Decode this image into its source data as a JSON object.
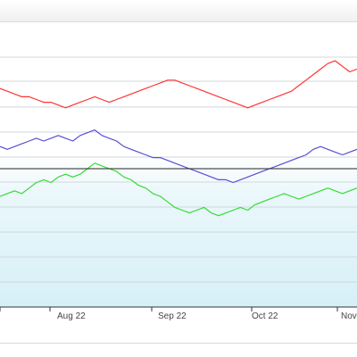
{
  "chart_data": {
    "type": "line",
    "title": "",
    "xlabel": "",
    "ylabel": "",
    "x_tick_labels": [
      "Aug 22",
      "Sep 22",
      "Oct 22",
      "Nov"
    ],
    "grid": true,
    "legend": "none",
    "reference_line": 0.5,
    "ylim": [
      0,
      1
    ],
    "series": [
      {
        "color": "#ff3333",
        "values": [
          0.79,
          0.78,
          0.77,
          0.76,
          0.76,
          0.75,
          0.74,
          0.74,
          0.73,
          0.72,
          0.73,
          0.74,
          0.75,
          0.76,
          0.75,
          0.74,
          0.75,
          0.76,
          0.77,
          0.78,
          0.79,
          0.8,
          0.81,
          0.82,
          0.82,
          0.81,
          0.8,
          0.79,
          0.78,
          0.77,
          0.76,
          0.75,
          0.74,
          0.73,
          0.72,
          0.73,
          0.74,
          0.75,
          0.76,
          0.77,
          0.78,
          0.8,
          0.82,
          0.84,
          0.86,
          0.88,
          0.89,
          0.87,
          0.85,
          0.86
        ]
      },
      {
        "color": "#5b4bd6",
        "values": [
          0.58,
          0.57,
          0.58,
          0.59,
          0.6,
          0.61,
          0.6,
          0.61,
          0.62,
          0.61,
          0.6,
          0.62,
          0.63,
          0.64,
          0.62,
          0.61,
          0.6,
          0.58,
          0.57,
          0.56,
          0.55,
          0.54,
          0.54,
          0.53,
          0.52,
          0.51,
          0.5,
          0.49,
          0.48,
          0.47,
          0.46,
          0.46,
          0.45,
          0.46,
          0.47,
          0.48,
          0.49,
          0.5,
          0.51,
          0.52,
          0.53,
          0.54,
          0.55,
          0.57,
          0.58,
          0.57,
          0.56,
          0.55,
          0.56,
          0.57
        ]
      },
      {
        "color": "#33dd33",
        "values": [
          0.4,
          0.41,
          0.42,
          0.41,
          0.43,
          0.45,
          0.46,
          0.45,
          0.47,
          0.48,
          0.47,
          0.48,
          0.5,
          0.52,
          0.51,
          0.5,
          0.49,
          0.47,
          0.46,
          0.44,
          0.43,
          0.41,
          0.4,
          0.38,
          0.36,
          0.35,
          0.34,
          0.35,
          0.36,
          0.34,
          0.33,
          0.34,
          0.35,
          0.36,
          0.35,
          0.37,
          0.38,
          0.39,
          0.4,
          0.41,
          0.4,
          0.39,
          0.4,
          0.41,
          0.42,
          0.43,
          0.42,
          0.41,
          0.42,
          0.43
        ]
      }
    ]
  }
}
